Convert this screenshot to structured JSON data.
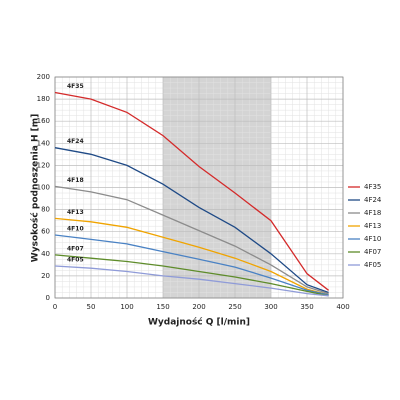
{
  "chart_data": {
    "type": "line",
    "x_label": "Wydajność Q [l/min]",
    "y_label": "Wysokość podnoszenia H [m]",
    "x": [
      0,
      50,
      100,
      150,
      200,
      250,
      300,
      350,
      380
    ],
    "series": [
      {
        "name": "4F35",
        "color": "#d42a2a",
        "values": [
          186,
          180,
          168,
          147,
          119,
          95,
          70,
          22,
          7
        ]
      },
      {
        "name": "4F24",
        "color": "#1f4a86",
        "values": [
          136,
          130,
          120,
          103,
          82,
          64,
          40,
          12,
          5
        ]
      },
      {
        "name": "4F18",
        "color": "#8c8c8c",
        "values": [
          101,
          96,
          89,
          75,
          61,
          47,
          30,
          10,
          4
        ]
      },
      {
        "name": "4F13",
        "color": "#f0a400",
        "values": [
          72,
          69,
          64,
          55,
          46,
          36,
          24,
          8,
          3
        ]
      },
      {
        "name": "4F10",
        "color": "#4a82c4",
        "values": [
          57,
          53,
          49,
          42,
          35,
          28,
          18,
          7,
          3
        ]
      },
      {
        "name": "4F07",
        "color": "#5e8c2a",
        "values": [
          39,
          36,
          33,
          29,
          24,
          19,
          13,
          6,
          2
        ]
      },
      {
        "name": "4F05",
        "color": "#8f9bd8",
        "values": [
          29,
          27,
          24,
          20,
          17,
          13,
          9,
          4,
          2
        ]
      }
    ],
    "xlim": [
      0,
      400
    ],
    "xticks": [
      0,
      50,
      100,
      150,
      200,
      250,
      300,
      350,
      400
    ],
    "ylim": [
      0,
      200
    ],
    "yticks": [
      0,
      20,
      40,
      60,
      80,
      100,
      120,
      140,
      160,
      180,
      200
    ],
    "shaded_range": [
      150,
      300
    ],
    "grid": true,
    "legend": "right"
  }
}
